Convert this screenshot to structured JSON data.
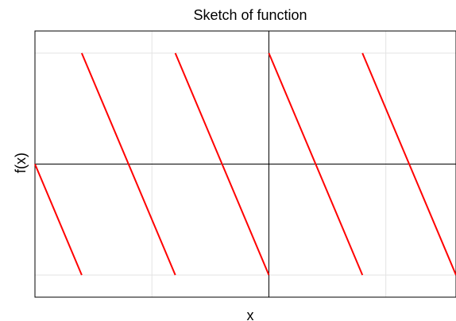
{
  "chart_data": {
    "type": "line",
    "title": "Sketch of function",
    "xlabel": "x",
    "ylabel": "f(x)",
    "xlim": [
      -5,
      4
    ],
    "ylim": [
      -1.2,
      1.2
    ],
    "grid": true,
    "xticks": [
      -5,
      -2.5,
      0,
      2.5,
      4
    ],
    "yticks": [
      -1,
      0,
      1
    ],
    "series": [
      {
        "color": "#ff0000",
        "segments": [
          [
            [
              -5,
              0
            ],
            [
              -4,
              -1
            ]
          ],
          [
            [
              -4,
              1
            ],
            [
              -2,
              -1
            ]
          ],
          [
            [
              -2,
              1
            ],
            [
              0,
              -1
            ]
          ],
          [
            [
              0,
              1
            ],
            [
              2,
              -1
            ]
          ],
          [
            [
              2,
              1
            ],
            [
              4,
              -1
            ]
          ]
        ]
      }
    ]
  }
}
